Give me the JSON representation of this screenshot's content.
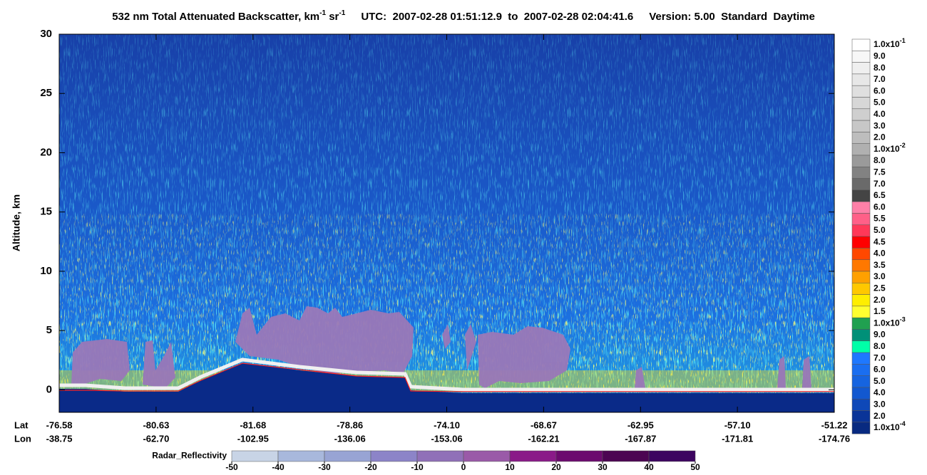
{
  "chart_data": {
    "type": "heatmap",
    "title": {
      "product": "532 nm Total Attenuated Backscatter, km",
      "unit_exp_1": "-1",
      "unit_2": " sr",
      "unit_exp_2": "-1",
      "utc": "UTC:  2007-02-28 01:51:12.9  to  2007-02-28 02:04:41.6",
      "version": "Version: 5.00  Standard  Daytime"
    },
    "y_label": "Altitude, km",
    "ylim": [
      -1.9,
      30
    ],
    "yticks": [
      0,
      5,
      10,
      15,
      20,
      25,
      30
    ],
    "x_row_labels": [
      "Lat",
      "Lon"
    ],
    "lat": [
      "-76.58",
      "-80.63",
      "-81.68",
      "-78.86",
      "-74.10",
      "-68.67",
      "-62.95",
      "-57.10",
      "-51.22"
    ],
    "lon": [
      "-38.75",
      "-62.70",
      "-102.95",
      "-136.06",
      "-153.06",
      "-162.21",
      "-167.87",
      "-171.81",
      "-174.76"
    ],
    "colorbar": [
      {
        "label": "1.0x10",
        "exp": "-1",
        "color": "#ffffff"
      },
      {
        "label": "9.0",
        "color": "#f7f7f7"
      },
      {
        "label": "8.0",
        "color": "#efefef"
      },
      {
        "label": "7.0",
        "color": "#e7e7e7"
      },
      {
        "label": "6.0",
        "color": "#dfdfdf"
      },
      {
        "label": "5.0",
        "color": "#d7d7d7"
      },
      {
        "label": "4.0",
        "color": "#cfcfcf"
      },
      {
        "label": "3.0",
        "color": "#c7c7c7"
      },
      {
        "label": "2.0",
        "color": "#bdbdbd"
      },
      {
        "label": "1.0x10",
        "exp": "-2",
        "color": "#b0b0b0"
      },
      {
        "label": "8.0",
        "color": "#9a9a9a"
      },
      {
        "label": "7.5",
        "color": "#828282"
      },
      {
        "label": "7.0",
        "color": "#6a6a6a"
      },
      {
        "label": "6.5",
        "color": "#444444"
      },
      {
        "label": "6.0",
        "color": "#ff80a8"
      },
      {
        "label": "5.5",
        "color": "#ff6088"
      },
      {
        "label": "5.0",
        "color": "#ff3858"
      },
      {
        "label": "4.5",
        "color": "#ff0000"
      },
      {
        "label": "4.0",
        "color": "#ff4800"
      },
      {
        "label": "3.5",
        "color": "#ff7800"
      },
      {
        "label": "3.0",
        "color": "#ffa000"
      },
      {
        "label": "2.5",
        "color": "#ffc800"
      },
      {
        "label": "2.0",
        "color": "#ffee00"
      },
      {
        "label": "1.5",
        "color": "#ffff30"
      },
      {
        "label": "1.0x10",
        "exp": "-3",
        "color": "#20a050"
      },
      {
        "label": "9.0",
        "color": "#009078"
      },
      {
        "label": "8.0",
        "color": "#00ffa8"
      },
      {
        "label": "7.0",
        "color": "#1e78ff"
      },
      {
        "label": "6.0",
        "color": "#1a6ef0"
      },
      {
        "label": "5.0",
        "color": "#1664e0"
      },
      {
        "label": "4.0",
        "color": "#1258d0"
      },
      {
        "label": "3.0",
        "color": "#0e48b8"
      },
      {
        "label": "2.0",
        "color": "#0a3498"
      },
      {
        "label": "1.0x10",
        "exp": "-4",
        "color": "#082a80"
      }
    ],
    "radar": {
      "label": "Radar_Reflectivity",
      "ticks": [
        -50,
        -40,
        -30,
        -20,
        -10,
        0,
        10,
        20,
        30,
        40,
        50
      ],
      "colors": [
        "#c8d4e6",
        "#a8b8dc",
        "#98a4d4",
        "#8c84c8",
        "#9070b8",
        "#9a5aa8",
        "#8a1a88",
        "#6c0a6e",
        "#4c0452",
        "#3c0460"
      ]
    }
  }
}
